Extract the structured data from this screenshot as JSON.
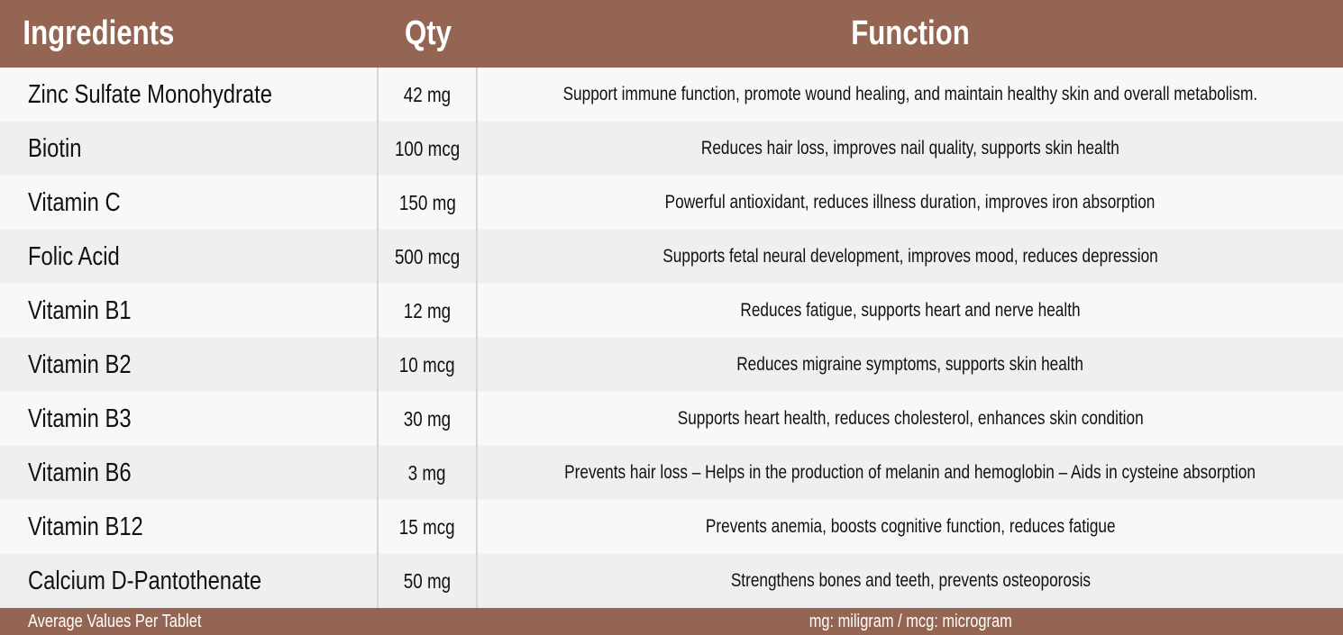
{
  "header": {
    "ingredients": "Ingredients",
    "qty": "Qty",
    "function": "Function"
  },
  "rows": [
    {
      "ingredient": "Zinc Sulfate Monohydrate",
      "qty": "42 mg",
      "function": "Support immune function, promote wound healing, and maintain healthy skin and overall metabolism."
    },
    {
      "ingredient": "Biotin",
      "qty": "100 mcg",
      "function": "Reduces hair loss, improves nail quality, supports skin health"
    },
    {
      "ingredient": "Vitamin C",
      "qty": "150 mg",
      "function": "Powerful antioxidant, reduces illness duration, improves iron absorption"
    },
    {
      "ingredient": "Folic Acid",
      "qty": "500 mcg",
      "function": "Supports fetal neural development, improves mood, reduces depression"
    },
    {
      "ingredient": "Vitamin B1",
      "qty": "12 mg",
      "function": "Reduces fatigue, supports heart and nerve health"
    },
    {
      "ingredient": "Vitamin B2",
      "qty": "10 mcg",
      "function": "Reduces migraine symptoms, supports skin health"
    },
    {
      "ingredient": "Vitamin B3",
      "qty": "30 mg",
      "function": "Supports heart health, reduces cholesterol, enhances skin condition"
    },
    {
      "ingredient": "Vitamin B6",
      "qty": "3 mg",
      "function": "Prevents hair loss – Helps in the production of melanin and hemoglobin – Aids in cysteine absorption"
    },
    {
      "ingredient": "Vitamin B12",
      "qty": "15 mcg",
      "function": "Prevents anemia, boosts cognitive function, reduces fatigue"
    },
    {
      "ingredient": "Calcium D-Pantothenate",
      "qty": "50 mg",
      "function": "Strengthens bones and teeth, prevents osteoporosis"
    }
  ],
  "footer": {
    "left": "Average Values Per Tablet",
    "right": "mg: miligram / mcg: microgram"
  },
  "colors": {
    "header_bg": "#956553",
    "row_light": "#f8f8f8",
    "row_dark": "#efefef",
    "text": "#111111"
  }
}
